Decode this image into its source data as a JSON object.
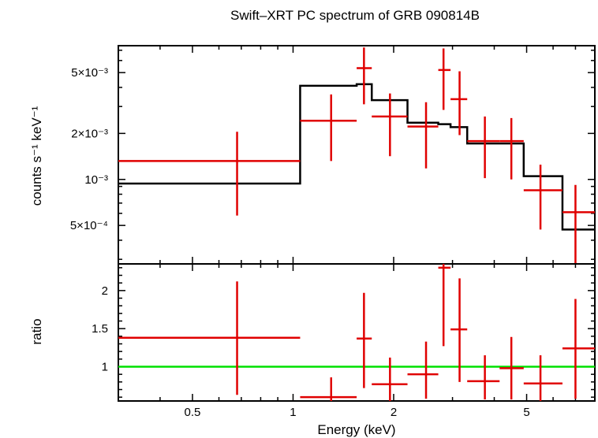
{
  "chart_data": [
    {
      "type": "line",
      "title": "Swift–XRT PC spectrum of GRB 090814B",
      "xlabel": "",
      "ylabel": "counts s⁻¹ keV⁻¹",
      "xscale": "log",
      "yscale": "log",
      "xlim": [
        0.3,
        8.0
      ],
      "ylim": [
        0.00028,
        0.0075
      ],
      "y_tick_labels": [
        "5×10⁻³",
        "2×10⁻³",
        "10⁻³",
        "5×10⁻⁴"
      ],
      "y_tick_values": [
        0.005,
        0.002,
        0.001,
        0.0005
      ],
      "series": [
        {
          "kind": "data",
          "color": "#e00000",
          "points": [
            {
              "x": 0.68,
              "xlo": 0.3,
              "xhi": 1.05,
              "y": 0.00132,
              "ylo": 0.00058,
              "yhi": 0.00205
            },
            {
              "x": 1.3,
              "xlo": 1.05,
              "xhi": 1.55,
              "y": 0.00242,
              "ylo": 0.00132,
              "yhi": 0.0036
            },
            {
              "x": 1.63,
              "xlo": 1.55,
              "xhi": 1.72,
              "y": 0.00535,
              "ylo": 0.0031,
              "yhi": 0.0073
            },
            {
              "x": 1.95,
              "xlo": 1.72,
              "xhi": 2.2,
              "y": 0.00258,
              "ylo": 0.00142,
              "yhi": 0.00365
            },
            {
              "x": 2.5,
              "xlo": 2.2,
              "xhi": 2.72,
              "y": 0.00222,
              "ylo": 0.00118,
              "yhi": 0.0032
            },
            {
              "x": 2.82,
              "xlo": 2.72,
              "xhi": 2.96,
              "y": 0.0052,
              "ylo": 0.00285,
              "yhi": 0.0072
            },
            {
              "x": 3.15,
              "xlo": 2.96,
              "xhi": 3.32,
              "y": 0.00335,
              "ylo": 0.00195,
              "yhi": 0.0051
            },
            {
              "x": 3.75,
              "xlo": 3.32,
              "xhi": 4.15,
              "y": 0.00178,
              "ylo": 0.00102,
              "yhi": 0.00258
            },
            {
              "x": 4.5,
              "xlo": 4.15,
              "xhi": 4.9,
              "y": 0.00178,
              "ylo": 0.001,
              "yhi": 0.00252
            },
            {
              "x": 5.5,
              "xlo": 4.9,
              "xhi": 6.4,
              "y": 0.00085,
              "ylo": 0.00047,
              "yhi": 0.00125
            },
            {
              "x": 7.0,
              "xlo": 6.4,
              "xhi": 8.0,
              "y": 0.00061,
              "ylo": 0.00028,
              "yhi": 0.00092
            }
          ]
        },
        {
          "kind": "model",
          "color": "#000000",
          "edges": [
            0.3,
            1.05,
            1.55,
            1.72,
            2.2,
            2.72,
            2.96,
            3.32,
            4.15,
            4.9,
            6.4,
            8.0
          ],
          "values": [
            0.00094,
            0.0041,
            0.0042,
            0.0033,
            0.00235,
            0.0023,
            0.0022,
            0.00172,
            0.00172,
            0.00105,
            0.00047
          ]
        }
      ]
    },
    {
      "type": "line",
      "title": "",
      "xlabel": "Energy (keV)",
      "ylabel": "ratio",
      "xscale": "log",
      "yscale": "linear",
      "xlim": [
        0.3,
        8.0
      ],
      "ylim": [
        0.55,
        2.35
      ],
      "x_tick_labels": [
        "0.5",
        "1",
        "2",
        "5"
      ],
      "x_tick_values": [
        0.5,
        1,
        2,
        5
      ],
      "y_tick_labels": [
        "2",
        "1.5",
        "1"
      ],
      "y_tick_values": [
        2,
        1.5,
        1
      ],
      "reference_line": {
        "y": 1.0,
        "color": "#00e000"
      },
      "series": [
        {
          "kind": "ratio",
          "color": "#e00000",
          "points": [
            {
              "x": 0.68,
              "xlo": 0.3,
              "xhi": 1.05,
              "y": 1.38,
              "ylo": 0.63,
              "yhi": 2.12
            },
            {
              "x": 1.3,
              "xlo": 1.05,
              "xhi": 1.55,
              "y": 0.6,
              "ylo": 0.55,
              "yhi": 0.86
            },
            {
              "x": 1.63,
              "xlo": 1.55,
              "xhi": 1.72,
              "y": 1.37,
              "ylo": 0.72,
              "yhi": 1.97
            },
            {
              "x": 1.95,
              "xlo": 1.72,
              "xhi": 2.2,
              "y": 0.77,
              "ylo": 0.55,
              "yhi": 1.12
            },
            {
              "x": 2.5,
              "xlo": 2.2,
              "xhi": 2.72,
              "y": 0.9,
              "ylo": 0.58,
              "yhi": 1.33
            },
            {
              "x": 2.82,
              "xlo": 2.72,
              "xhi": 2.96,
              "y": 2.3,
              "ylo": 1.27,
              "yhi": 2.35
            },
            {
              "x": 3.15,
              "xlo": 2.96,
              "xhi": 3.32,
              "y": 1.49,
              "ylo": 0.8,
              "yhi": 2.16
            },
            {
              "x": 3.75,
              "xlo": 3.32,
              "xhi": 4.15,
              "y": 0.81,
              "ylo": 0.57,
              "yhi": 1.15
            },
            {
              "x": 4.5,
              "xlo": 4.15,
              "xhi": 4.9,
              "y": 0.98,
              "ylo": 0.57,
              "yhi": 1.39
            },
            {
              "x": 5.5,
              "xlo": 4.9,
              "xhi": 6.4,
              "y": 0.78,
              "ylo": 0.55,
              "yhi": 1.15
            },
            {
              "x": 7.0,
              "xlo": 6.4,
              "xhi": 8.0,
              "y": 1.24,
              "ylo": 0.58,
              "yhi": 1.89
            }
          ]
        }
      ]
    }
  ]
}
